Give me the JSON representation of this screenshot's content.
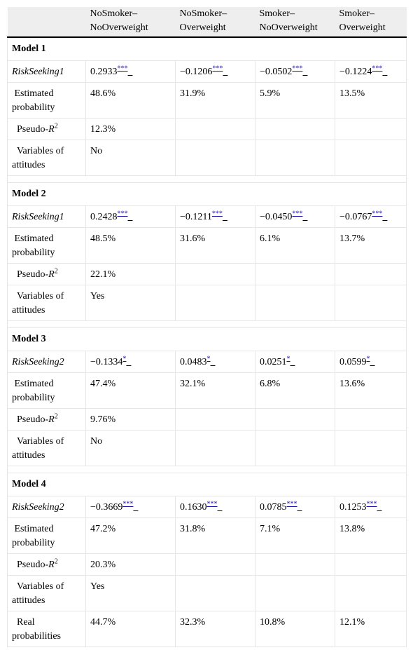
{
  "headers": [
    "",
    "NoSmoker–NoOverweight",
    "NoSmoker–Overweight",
    "Smoker–NoOverweight",
    "Smoker–Overweight"
  ],
  "header_lines": [
    [
      "NoSmoker–",
      "NoOverweight"
    ],
    [
      "NoSmoker–",
      "Overweight"
    ],
    [
      "Smoker–",
      "NoOverweight"
    ],
    [
      "Smoker–",
      "Overweight"
    ]
  ],
  "models": [
    {
      "title": "Model 1",
      "risk_label": "RiskSeeking1",
      "risk_values": [
        "0.2933",
        "−0.1206",
        "−0.0502",
        "−0.1224"
      ],
      "risk_sig": [
        "***",
        "***",
        "***",
        "***"
      ],
      "est_label": "Estimated probability",
      "est_values": [
        "48.6%",
        "31.9%",
        "5.9%",
        "13.5%"
      ],
      "pseudo_label_a": "Pseudo-",
      "pseudo_label_b": "R",
      "pseudo_label_c": "2",
      "pseudo_value": "12.3%",
      "vars_label": "Variables of attitudes",
      "vars_value": "No"
    },
    {
      "title": "Model 2",
      "risk_label": "RiskSeeking1",
      "risk_values": [
        "0.2428",
        "−0.1211",
        "−0.0450",
        "−0.0767"
      ],
      "risk_sig": [
        "***",
        "***",
        "***",
        "***"
      ],
      "est_label": "Estimated probability",
      "est_values": [
        "48.5%",
        "31.6%",
        "6.1%",
        "13.7%"
      ],
      "pseudo_label_a": "Pseudo-",
      "pseudo_label_b": "R",
      "pseudo_label_c": "2",
      "pseudo_value": "22.1%",
      "vars_label": "Variables of attitudes",
      "vars_value": "Yes"
    },
    {
      "title": "Model 3",
      "risk_label": "RiskSeeking2",
      "risk_values": [
        "−0.1334",
        "0.0483",
        "0.0251",
        "0.0599"
      ],
      "risk_sig": [
        "*",
        "*",
        "*",
        "*"
      ],
      "est_label": "Estimated probability",
      "est_values": [
        "47.4%",
        "32.1%",
        "6.8%",
        "13.6%"
      ],
      "pseudo_label_a": "Pseudo-",
      "pseudo_label_b": "R",
      "pseudo_label_c": "2",
      "pseudo_value": "9.76%",
      "vars_label": "Variables of attitudes",
      "vars_value": "No"
    },
    {
      "title": "Model 4",
      "risk_label": "RiskSeeking2",
      "risk_values": [
        "−0.3669",
        "0.1630",
        "0.0785",
        "0.1253"
      ],
      "risk_sig": [
        "***",
        "***",
        "***",
        "***"
      ],
      "est_label": "Estimated probability",
      "est_values": [
        "47.2%",
        "31.8%",
        "7.1%",
        "13.8%"
      ],
      "pseudo_label_a": "Pseudo-",
      "pseudo_label_b": "R",
      "pseudo_label_c": "2",
      "pseudo_value": "20.3%",
      "vars_label": "Variables of attitudes",
      "vars_value": "Yes"
    }
  ],
  "real": {
    "label": "Real probabilities",
    "values": [
      "44.7%",
      "32.3%",
      "10.8%",
      "12.1%"
    ]
  }
}
